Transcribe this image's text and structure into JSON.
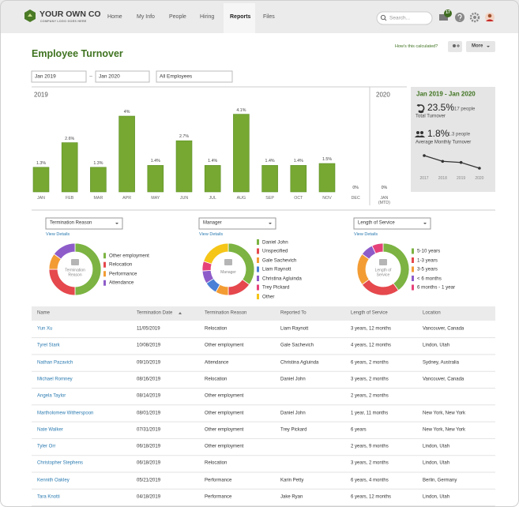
{
  "nav": {
    "logo": "YOUR OWN CO",
    "tagline": "COMPANY LOGO GOES HERE",
    "items": [
      "Home",
      "My Info",
      "People",
      "Hiring",
      "Reports",
      "Files"
    ],
    "active": 4,
    "search": "Search...",
    "badge": "17"
  },
  "header": {
    "title": "Employee Turnover",
    "how": "How's this calculated?",
    "more": "More"
  },
  "filters": {
    "from": "Jan 2019",
    "separator": "–",
    "to": "Jan 2020",
    "group": "All Employees"
  },
  "bar_chart": {
    "type": "bar",
    "period_1": "2019",
    "period_2": "2020",
    "color": "#76a832",
    "categories": [
      "JAN",
      "FEB",
      "MAR",
      "APR",
      "MAY",
      "JUN",
      "JUL",
      "AUG",
      "SEP",
      "OCT",
      "NOV",
      "DEC",
      "JAN (MTD)"
    ],
    "values": [
      1.3,
      2.6,
      1.3,
      4,
      1.4,
      2.7,
      1.4,
      4.1,
      1.4,
      1.4,
      1.5,
      0,
      0
    ],
    "value_labels": [
      "1.3%",
      "2.6%",
      "1.3%",
      "4%",
      "1.4%",
      "2.7%",
      "1.4%",
      "4.1%",
      "1.4%",
      "1.4%",
      "1.5%",
      "0%",
      "0%"
    ]
  },
  "summary": {
    "range": "Jan 2019 - Jan 2020",
    "total": "23.5%",
    "total_people": "17 people",
    "total_label": "Total Turnover",
    "monthly": "1.8%",
    "monthly_people": "1.3 people",
    "monthly_label": "Average Monthly Turnover",
    "sparkline": {
      "type": "line",
      "x": [
        "2017",
        "2018",
        "2019",
        "2020"
      ],
      "values": [
        2.6,
        2.1,
        2.0,
        1.5
      ],
      "color": "#333333"
    }
  },
  "donuts": [
    {
      "type": "donut",
      "selector": "Termination Reason",
      "link": "View Details",
      "center": "Termination Reason",
      "series": [
        {
          "name": "Other employment",
          "color": "#7cb342",
          "value": 50
        },
        {
          "name": "Relocation",
          "color": "#e5484d",
          "value": 25
        },
        {
          "name": "Performance",
          "color": "#f39c34",
          "value": 10
        },
        {
          "name": "Attendance",
          "color": "#8e5cc9",
          "value": 15
        }
      ]
    },
    {
      "type": "donut",
      "selector": "Manager",
      "link": "View Details",
      "center": "Manager",
      "series": [
        {
          "name": "Daniel John",
          "color": "#7cb342",
          "value": 35
        },
        {
          "name": "Unspecified",
          "color": "#e5484d",
          "value": 15
        },
        {
          "name": "Gale Sachevich",
          "color": "#f39c34",
          "value": 8
        },
        {
          "name": "Liam Raynott",
          "color": "#4a80d6",
          "value": 8
        },
        {
          "name": "Christina Agluinda",
          "color": "#8e5cc9",
          "value": 8
        },
        {
          "name": "Trey Pickard",
          "color": "#e6427a",
          "value": 6
        },
        {
          "name": "Other",
          "color": "#f5c518",
          "value": 20
        }
      ]
    },
    {
      "type": "donut",
      "selector": "Length of Service",
      "link": "View Details",
      "center": "Length of Service",
      "series": [
        {
          "name": "5-10 years",
          "color": "#7cb342",
          "value": 40
        },
        {
          "name": "1-3 years",
          "color": "#e5484d",
          "value": 25
        },
        {
          "name": "3-5 years",
          "color": "#f39c34",
          "value": 20
        },
        {
          "name": "< 6 months",
          "color": "#8e5cc9",
          "value": 8
        },
        {
          "name": "6 months - 1 year",
          "color": "#e6427a",
          "value": 7
        }
      ]
    }
  ],
  "table": {
    "columns": [
      "Name",
      "Termination Date",
      "Termination Reason",
      "Reported To",
      "Length of Service",
      "Location"
    ],
    "rows": [
      [
        "Yun Xu",
        "11/05/2019",
        "Relocation",
        "Liam Raynott",
        "3 years, 12 months",
        "Vancouver, Canada"
      ],
      [
        "Tyrel Stark",
        "10/08/2019",
        "Other employment",
        "Gale Sachevich",
        "4 years, 12 months",
        "Lindon, Utah"
      ],
      [
        "Nathan Pazavich",
        "09/10/2019",
        "Attendance",
        "Christina Agluinda",
        "6 years, 2 months",
        "Sydney, Australia"
      ],
      [
        "Michael Romney",
        "08/16/2019",
        "Relocation",
        "Daniel John",
        "3 years, 2 months",
        "Vancouver, Canada"
      ],
      [
        "Angela Taylor",
        "08/14/2019",
        "Other employment",
        null,
        "2 years, 2 months",
        null
      ],
      [
        "Martholomew Witherspoon",
        "08/01/2019",
        "Other employment",
        "Daniel John",
        "1 year, 11 months",
        "New York, New York"
      ],
      [
        "Nate Walker",
        "07/31/2019",
        "Other employment",
        "Trey Pickard",
        "6 years",
        "New York, New York"
      ],
      [
        "Tyler Orr",
        "06/18/2019",
        "Other employment",
        null,
        "2 years, 9 months",
        "Lindon, Utah"
      ],
      [
        "Christopher Stephens",
        "06/18/2019",
        "Relocation",
        null,
        "3 years, 2 months",
        "Lindon, Utah"
      ],
      [
        "Kennith Oakley",
        "05/21/2019",
        "Performance",
        "Karin Petty",
        "6 years, 4 months",
        "Berlin, Germany"
      ],
      [
        "Tara Knotti",
        "04/18/2019",
        "Performance",
        "Jake Ryan",
        "6 years, 12 months",
        "Lindon, Utah"
      ]
    ]
  }
}
